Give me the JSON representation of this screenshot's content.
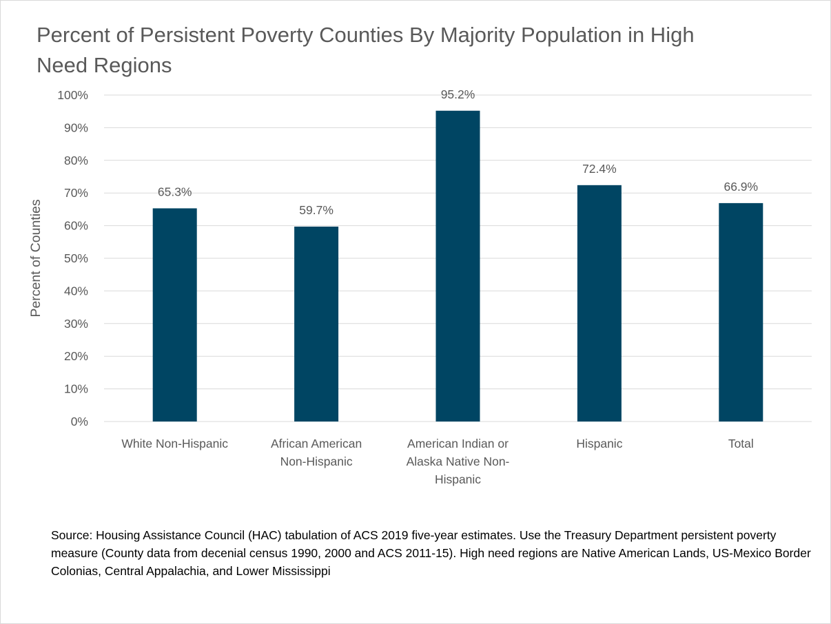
{
  "chart_data": {
    "type": "bar",
    "title": "Percent of Persistent Poverty Counties By Majority Population in High Need Regions",
    "ylabel": "Percent of Counties",
    "xlabel": "",
    "categories": [
      "White Non-Hispanic",
      "African American Non-Hispanic",
      "American Indian or Alaska Native Non-Hispanic",
      "Hispanic",
      "Total"
    ],
    "category_label_lines": [
      [
        "White Non-Hispanic"
      ],
      [
        "African American",
        "Non-Hispanic"
      ],
      [
        "American Indian or",
        "Alaska Native Non-",
        "Hispanic"
      ],
      [
        "Hispanic"
      ],
      [
        "Total"
      ]
    ],
    "values": [
      65.3,
      59.7,
      95.2,
      72.4,
      66.9
    ],
    "data_labels": [
      "65.3%",
      "59.7%",
      "95.2%",
      "72.4%",
      "66.9%"
    ],
    "ylim": [
      0,
      100
    ],
    "ytick_values": [
      0,
      10,
      20,
      30,
      40,
      50,
      60,
      70,
      80,
      90,
      100
    ],
    "ytick_labels": [
      "0%",
      "10%",
      "20%",
      "30%",
      "40%",
      "50%",
      "60%",
      "70%",
      "80%",
      "90%",
      "100%"
    ],
    "grid": true,
    "legend": "none",
    "bar_color": "#004563",
    "grid_color": "#d9d9d9",
    "text_color": "#595959"
  },
  "source_note": "Source: Housing Assistance Council (HAC) tabulation of ACS 2019 five-year estimates. Use the Treasury Department persistent poverty measure (County data from decenial census 1990, 2000 and ACS 2011-15). High need regions are Native American Lands, US-Mexico Border Colonias, Central Appalachia, and Lower Mississippi"
}
